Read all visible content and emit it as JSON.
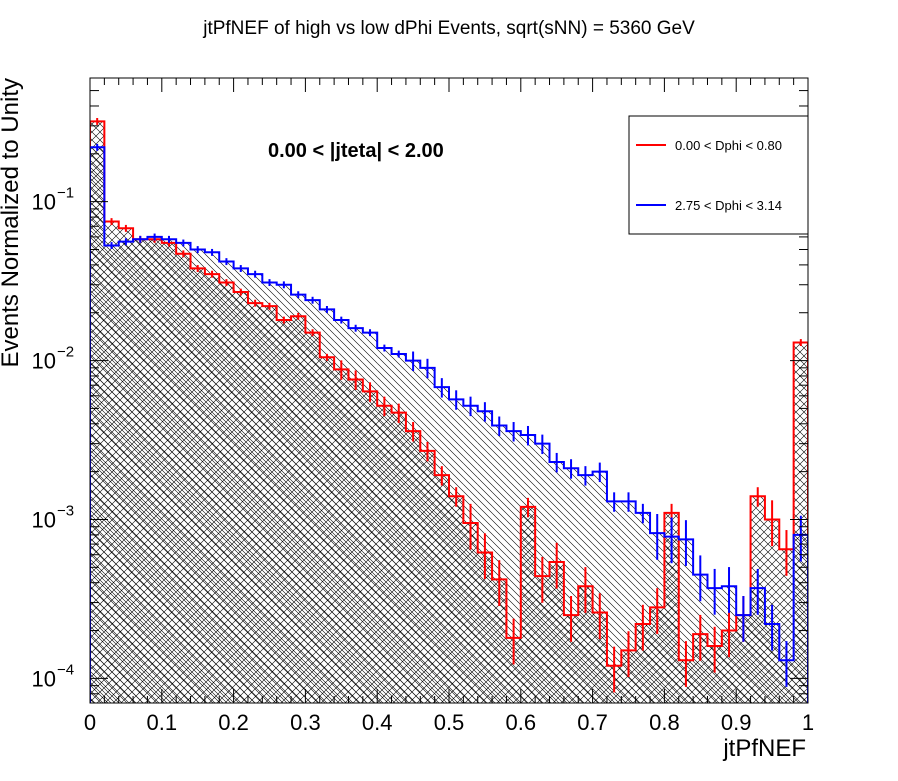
{
  "chart_data": {
    "type": "histogram",
    "title": "jtPfNEF of high vs low dPhi Events, sqrt(sNN) = 5360 GeV",
    "xlabel": "jtPfNEF",
    "ylabel": "Events Normalized to Unity",
    "annotation": "0.00 < |jteta| < 2.00",
    "xlim": [
      0,
      1
    ],
    "ylim": [
      7e-05,
      0.6
    ],
    "y_scale": "log",
    "x_ticks": [
      0,
      0.1,
      0.2,
      0.3,
      0.4,
      0.5,
      0.6,
      0.7,
      0.8,
      0.9,
      1
    ],
    "x_tick_labels": [
      "0",
      "0.1",
      "0.2",
      "0.3",
      "0.4",
      "0.5",
      "0.6",
      "0.7",
      "0.8",
      "0.9",
      "1"
    ],
    "y_ticks": [
      0.0001,
      0.001,
      0.01,
      0.1
    ],
    "y_tick_labels": [
      [
        "10",
        "−4"
      ],
      [
        "10",
        "−3"
      ],
      [
        "10",
        "−2"
      ],
      [
        "10",
        "−1"
      ]
    ],
    "legend": {
      "placement": "top-right"
    },
    "bin_width": 0.02,
    "series": [
      {
        "name": "0.00 < Dphi < 0.80",
        "color": "#ff0000",
        "hatch": "cross",
        "values": [
          0.32,
          0.075,
          0.068,
          0.058,
          0.058,
          0.055,
          0.047,
          0.038,
          0.035,
          0.031,
          0.027,
          0.023,
          0.022,
          0.018,
          0.019,
          0.015,
          0.0105,
          0.0088,
          0.0076,
          0.0064,
          0.0052,
          0.0047,
          0.0036,
          0.0027,
          0.0019,
          0.0014,
          0.00095,
          0.00062,
          0.00042,
          0.00018,
          0.0012,
          0.00044,
          0.00054,
          0.00025,
          0.00038,
          0.00026,
          0.00012,
          0.00015,
          0.00022,
          0.00028,
          0.0011,
          0.00013,
          0.00019,
          0.00016,
          0.0002,
          0.00025,
          0.0014,
          0.001,
          0.00065,
          0.013
        ]
      },
      {
        "name": "2.75 < Dphi < 3.14",
        "color": "#0000ff",
        "hatch": "diagonal",
        "values": [
          0.22,
          0.053,
          0.056,
          0.058,
          0.06,
          0.058,
          0.055,
          0.05,
          0.048,
          0.042,
          0.038,
          0.035,
          0.031,
          0.03,
          0.026,
          0.024,
          0.021,
          0.018,
          0.016,
          0.015,
          0.012,
          0.011,
          0.01,
          0.009,
          0.0068,
          0.0057,
          0.0052,
          0.0048,
          0.0039,
          0.0036,
          0.0034,
          0.003,
          0.0023,
          0.0021,
          0.0019,
          0.002,
          0.0013,
          0.0013,
          0.0011,
          0.00082,
          0.00078,
          0.00075,
          0.00045,
          0.00037,
          0.00038,
          0.00025,
          0.00037,
          0.00022,
          0.00013,
          0.0008
        ]
      }
    ]
  }
}
